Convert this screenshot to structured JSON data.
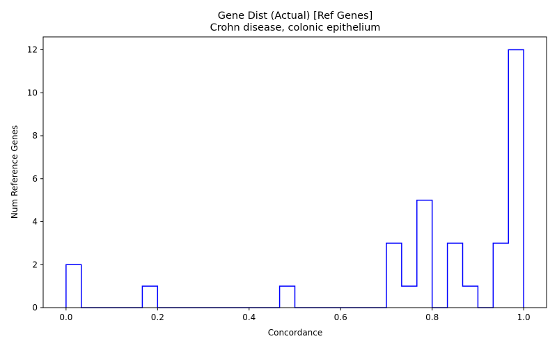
{
  "chart_data": {
    "type": "histogram",
    "title": "Gene Dist (Actual) [Ref Genes]",
    "subtitle": "Crohn disease, colonic epithelium",
    "xlabel": "Concordance",
    "ylabel": "Num Reference Genes",
    "xlim": [
      -0.05,
      1.05
    ],
    "ylim": [
      0,
      12.6
    ],
    "x_ticks": [
      "0.0",
      "0.2",
      "0.4",
      "0.6",
      "0.8",
      "1.0"
    ],
    "y_ticks": [
      "0",
      "2",
      "4",
      "6",
      "8",
      "10",
      "12"
    ],
    "grid": false,
    "legend": false,
    "line_color": "#0000ff",
    "bin_width": 0.0333,
    "bins_start": [
      0.0,
      0.0333,
      0.0667,
      0.1,
      0.1333,
      0.1667,
      0.2,
      0.2333,
      0.2667,
      0.3,
      0.3333,
      0.3667,
      0.4,
      0.4333,
      0.4667,
      0.5,
      0.5333,
      0.5667,
      0.6,
      0.6333,
      0.6667,
      0.7,
      0.7333,
      0.7667,
      0.8,
      0.8333,
      0.8667,
      0.9,
      0.9333,
      0.9667
    ],
    "counts": [
      2,
      0,
      0,
      0,
      0,
      1,
      0,
      0,
      0,
      0,
      0,
      0,
      0,
      0,
      1,
      0,
      0,
      0,
      0,
      0,
      0,
      3,
      1,
      5,
      0,
      3,
      1,
      0,
      3,
      12
    ]
  }
}
